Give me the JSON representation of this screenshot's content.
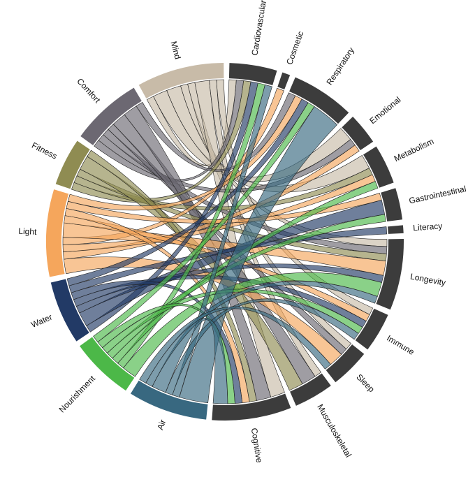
{
  "chart_data": {
    "type": "chord",
    "colors": {
      "dark_arc": "#3c3c3c",
      "Mind": "#c8bba8",
      "Comfort": "#6c6872",
      "Fitness": "#8f8c52",
      "Light": "#f5a65c",
      "Water": "#223a66",
      "Nourishment": "#4cb848",
      "Air": "#386880"
    },
    "groups": [
      {
        "name": "Cardiovascular",
        "kind": "health"
      },
      {
        "name": "Cosmetic",
        "kind": "health"
      },
      {
        "name": "Respiratory",
        "kind": "health"
      },
      {
        "name": "Emotional",
        "kind": "health"
      },
      {
        "name": "Metabolism",
        "kind": "health"
      },
      {
        "name": "Gastrointestinal",
        "kind": "health"
      },
      {
        "name": "Literacy",
        "kind": "health"
      },
      {
        "name": "Longevity",
        "kind": "health"
      },
      {
        "name": "Immune",
        "kind": "health"
      },
      {
        "name": "Sleep",
        "kind": "health"
      },
      {
        "name": "Musculoskeletal",
        "kind": "health"
      },
      {
        "name": "Cognitive",
        "kind": "health"
      },
      {
        "name": "Air",
        "kind": "concept"
      },
      {
        "name": "Nourishment",
        "kind": "concept"
      },
      {
        "name": "Water",
        "kind": "concept"
      },
      {
        "name": "Light",
        "kind": "concept"
      },
      {
        "name": "Fitness",
        "kind": "concept"
      },
      {
        "name": "Comfort",
        "kind": "concept"
      },
      {
        "name": "Mind",
        "kind": "concept"
      }
    ],
    "links": [
      {
        "source": "Mind",
        "target": "Cardiovascular",
        "value": 1
      },
      {
        "source": "Mind",
        "target": "Emotional",
        "value": 2
      },
      {
        "source": "Mind",
        "target": "Metabolism",
        "value": 2
      },
      {
        "source": "Mind",
        "target": "Longevity",
        "value": 1
      },
      {
        "source": "Mind",
        "target": "Sleep",
        "value": 1
      },
      {
        "source": "Mind",
        "target": "Cognitive",
        "value": 2
      },
      {
        "source": "Mind",
        "target": "Musculoskeletal",
        "value": 1
      },
      {
        "source": "Mind",
        "target": "Immune",
        "value": 1
      },
      {
        "source": "Comfort",
        "target": "Cardiovascular",
        "value": 1
      },
      {
        "source": "Comfort",
        "target": "Emotional",
        "value": 1
      },
      {
        "source": "Comfort",
        "target": "Longevity",
        "value": 1
      },
      {
        "source": "Comfort",
        "target": "Sleep",
        "value": 1
      },
      {
        "source": "Comfort",
        "target": "Musculoskeletal",
        "value": 2
      },
      {
        "source": "Comfort",
        "target": "Cognitive",
        "value": 2
      },
      {
        "source": "Comfort",
        "target": "Respiratory",
        "value": 1
      },
      {
        "source": "Fitness",
        "target": "Cardiovascular",
        "value": 1
      },
      {
        "source": "Fitness",
        "target": "Metabolism",
        "value": 1
      },
      {
        "source": "Fitness",
        "target": "Longevity",
        "value": 1
      },
      {
        "source": "Fitness",
        "target": "Musculoskeletal",
        "value": 2
      },
      {
        "source": "Fitness",
        "target": "Cognitive",
        "value": 1
      },
      {
        "source": "Light",
        "target": "Sleep",
        "value": 2
      },
      {
        "source": "Light",
        "target": "Emotional",
        "value": 1
      },
      {
        "source": "Light",
        "target": "Metabolism",
        "value": 1
      },
      {
        "source": "Light",
        "target": "Cosmetic",
        "value": 1
      },
      {
        "source": "Light",
        "target": "Longevity",
        "value": 2
      },
      {
        "source": "Light",
        "target": "Immune",
        "value": 1
      },
      {
        "source": "Light",
        "target": "Cognitive",
        "value": 1
      },
      {
        "source": "Light",
        "target": "Gastrointestinal",
        "value": 1
      },
      {
        "source": "Light",
        "target": "Respiratory",
        "value": 1
      },
      {
        "source": "Water",
        "target": "Cardiovascular",
        "value": 1
      },
      {
        "source": "Water",
        "target": "Gastrointestinal",
        "value": 2
      },
      {
        "source": "Water",
        "target": "Longevity",
        "value": 1
      },
      {
        "source": "Water",
        "target": "Immune",
        "value": 1
      },
      {
        "source": "Water",
        "target": "Cognitive",
        "value": 1
      },
      {
        "source": "Water",
        "target": "Literacy",
        "value": 1
      },
      {
        "source": "Water",
        "target": "Respiratory",
        "value": 1
      },
      {
        "source": "Nourishment",
        "target": "Longevity",
        "value": 2
      },
      {
        "source": "Nourishment",
        "target": "Cardiovascular",
        "value": 1
      },
      {
        "source": "Nourishment",
        "target": "Metabolism",
        "value": 1
      },
      {
        "source": "Nourishment",
        "target": "Gastrointestinal",
        "value": 1
      },
      {
        "source": "Nourishment",
        "target": "Immune",
        "value": 1
      },
      {
        "source": "Nourishment",
        "target": "Cognitive",
        "value": 1
      },
      {
        "source": "Nourishment",
        "target": "Respiratory",
        "value": 1
      },
      {
        "source": "Air",
        "target": "Respiratory",
        "value": 4
      },
      {
        "source": "Air",
        "target": "Cardiovascular",
        "value": 1
      },
      {
        "source": "Air",
        "target": "Immune",
        "value": 1
      },
      {
        "source": "Air",
        "target": "Cognitive",
        "value": 2
      },
      {
        "source": "Air",
        "target": "Longevity",
        "value": 1
      },
      {
        "source": "Air",
        "target": "Sleep",
        "value": 1
      }
    ]
  }
}
